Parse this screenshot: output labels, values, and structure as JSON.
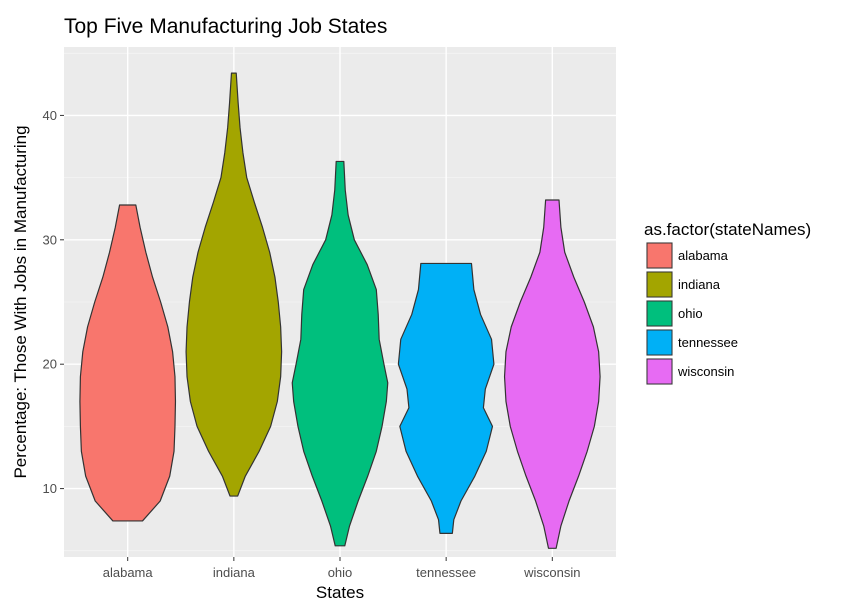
{
  "chart_data": {
    "type": "violin",
    "title": "Top Five Manufacturing Job States",
    "xlabel": "States",
    "ylabel": "Percentage: Those With Jobs in Manufacturing",
    "categories": [
      "alabama",
      "indiana",
      "ohio",
      "tennessee",
      "wisconsin"
    ],
    "yticks": [
      10,
      20,
      30,
      40
    ],
    "ylim": [
      4.5,
      45.5
    ],
    "grid": true,
    "legend": {
      "title": "as.factor(stateNames)",
      "placement": "right",
      "entries": [
        "alabama",
        "indiana",
        "ohio",
        "tennessee",
        "wisconsin"
      ]
    },
    "series": [
      {
        "name": "alabama",
        "color": "#F8766D",
        "min": 7.4,
        "max": 32.8,
        "density": [
          [
            7.4,
            0.31
          ],
          [
            9,
            0.68
          ],
          [
            11,
            0.88
          ],
          [
            13,
            0.97
          ],
          [
            15,
            0.99
          ],
          [
            17,
            1.0
          ],
          [
            19,
            0.99
          ],
          [
            21,
            0.94
          ],
          [
            23,
            0.84
          ],
          [
            25,
            0.69
          ],
          [
            27,
            0.52
          ],
          [
            29,
            0.38
          ],
          [
            31,
            0.26
          ],
          [
            32.8,
            0.17
          ]
        ]
      },
      {
        "name": "indiana",
        "color": "#A3A500",
        "min": 9.4,
        "max": 43.4,
        "density": [
          [
            9.4,
            0.08
          ],
          [
            11,
            0.24
          ],
          [
            13,
            0.53
          ],
          [
            15,
            0.77
          ],
          [
            17,
            0.91
          ],
          [
            19,
            0.98
          ],
          [
            21,
            1.0
          ],
          [
            23,
            0.98
          ],
          [
            25,
            0.93
          ],
          [
            27,
            0.86
          ],
          [
            29,
            0.75
          ],
          [
            31,
            0.6
          ],
          [
            33,
            0.43
          ],
          [
            35,
            0.27
          ],
          [
            37,
            0.19
          ],
          [
            39,
            0.13
          ],
          [
            41,
            0.09
          ],
          [
            43.4,
            0.05
          ]
        ]
      },
      {
        "name": "ohio",
        "color": "#00BF7D",
        "min": 5.4,
        "max": 36.3,
        "density": [
          [
            5.4,
            0.1
          ],
          [
            7,
            0.2
          ],
          [
            9,
            0.38
          ],
          [
            11,
            0.58
          ],
          [
            13,
            0.76
          ],
          [
            15,
            0.88
          ],
          [
            17,
            0.97
          ],
          [
            18.5,
            1.0
          ],
          [
            20,
            0.92
          ],
          [
            22,
            0.82
          ],
          [
            24,
            0.8
          ],
          [
            26,
            0.76
          ],
          [
            28,
            0.57
          ],
          [
            30,
            0.3
          ],
          [
            32,
            0.17
          ],
          [
            34,
            0.11
          ],
          [
            36.3,
            0.08
          ]
        ]
      },
      {
        "name": "tennessee",
        "color": "#00B0F6",
        "min": 6.4,
        "max": 28.1,
        "density": [
          [
            6.4,
            0.13
          ],
          [
            7.5,
            0.16
          ],
          [
            9,
            0.31
          ],
          [
            11,
            0.6
          ],
          [
            13,
            0.84
          ],
          [
            15,
            0.97
          ],
          [
            16.5,
            0.78
          ],
          [
            18,
            0.82
          ],
          [
            20,
            1.0
          ],
          [
            22,
            0.95
          ],
          [
            24,
            0.72
          ],
          [
            26,
            0.58
          ],
          [
            28.1,
            0.53
          ]
        ]
      },
      {
        "name": "wisconsin",
        "color": "#E76BF3",
        "min": 5.2,
        "max": 33.2,
        "density": [
          [
            5.2,
            0.08
          ],
          [
            7,
            0.18
          ],
          [
            9,
            0.35
          ],
          [
            11,
            0.55
          ],
          [
            13,
            0.73
          ],
          [
            15,
            0.88
          ],
          [
            17,
            0.97
          ],
          [
            19,
            1.0
          ],
          [
            21,
            0.97
          ],
          [
            23,
            0.86
          ],
          [
            25,
            0.67
          ],
          [
            27,
            0.45
          ],
          [
            29,
            0.26
          ],
          [
            31,
            0.18
          ],
          [
            33.2,
            0.14
          ]
        ]
      }
    ]
  }
}
